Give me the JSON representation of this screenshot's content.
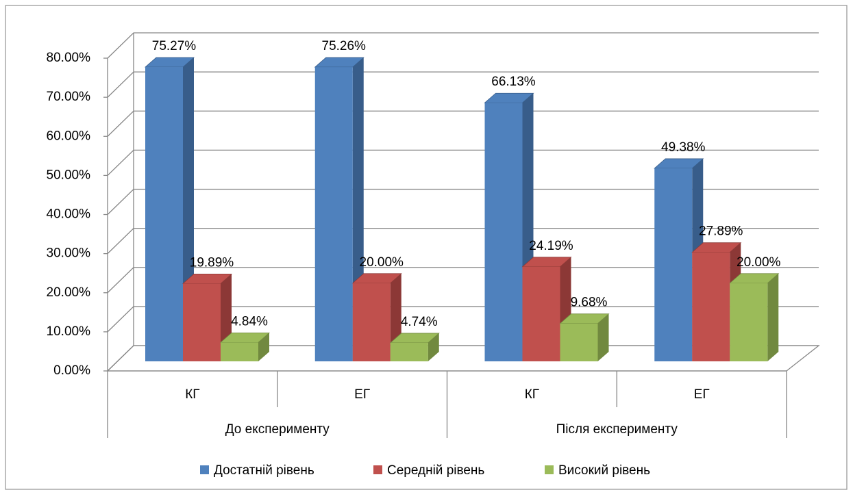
{
  "chart_data": {
    "type": "bar3d",
    "categories": [
      "КГ",
      "ЕГ",
      "КГ",
      "ЕГ"
    ],
    "groups": [
      "До експерименту",
      "Після експерименту"
    ],
    "series": [
      {
        "name": "Достатній рівень",
        "color": "#4f81bd",
        "side_color": "#385d8a",
        "values": [
          75.27,
          75.26,
          66.13,
          49.38
        ],
        "value_labels": [
          "75.27%",
          "75.26%",
          "66.13%",
          "49.38%"
        ]
      },
      {
        "name": "Середній рівень",
        "color": "#c0504d",
        "side_color": "#8c3836",
        "values": [
          19.89,
          20.0,
          24.19,
          27.89
        ],
        "value_labels": [
          "19.89%",
          "20.00%",
          "24.19%",
          "27.89%"
        ]
      },
      {
        "name": "Високий рівень",
        "color": "#9bbb59",
        "side_color": "#71893f",
        "values": [
          4.84,
          4.74,
          9.68,
          20.0
        ],
        "value_labels": [
          "4.84%",
          "4.74%",
          "9.68%",
          "20.00%"
        ]
      }
    ],
    "ylim": [
      0,
      80
    ],
    "yticks": [
      {
        "value": 0,
        "label": "0.00%"
      },
      {
        "value": 10,
        "label": "10.00%"
      },
      {
        "value": 20,
        "label": "20.00%"
      },
      {
        "value": 30,
        "label": "30.00%"
      },
      {
        "value": 40,
        "label": "40.00%"
      },
      {
        "value": 50,
        "label": "50.00%"
      },
      {
        "value": 60,
        "label": "60.00%"
      },
      {
        "value": 70,
        "label": "70.00%"
      },
      {
        "value": 80,
        "label": "80.00%"
      }
    ],
    "grid": true,
    "legend": "bottom"
  }
}
